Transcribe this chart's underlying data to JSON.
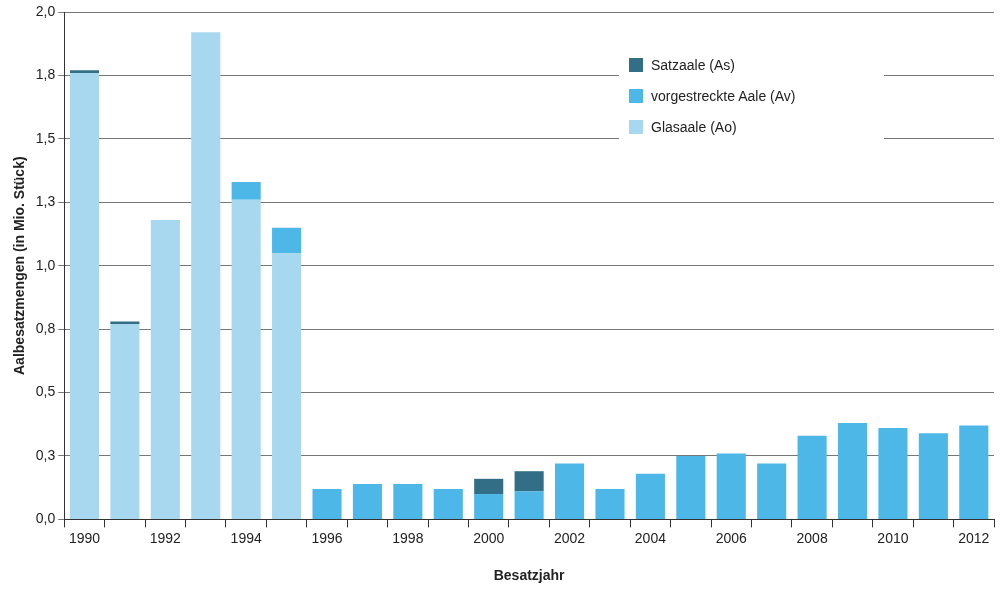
{
  "chart_data": {
    "type": "bar",
    "stacked": true,
    "xlabel": "Besatzjahr",
    "ylabel": "Aalbesatzmengen (in Mio. Stück)",
    "categories": [
      "1990",
      null,
      "1992",
      null,
      "1994",
      null,
      "1996",
      null,
      "1998",
      null,
      "2000",
      null,
      "2002",
      null,
      "2004",
      null,
      "2006",
      null,
      "2008",
      null,
      "2010",
      null,
      "2012"
    ],
    "series": [
      {
        "name": "Glasaale (Ao)",
        "color": "#a8d8f0",
        "values": [
          1.76,
          0.77,
          1.18,
          1.92,
          1.26,
          1.05,
          0,
          0,
          0,
          0,
          0,
          0,
          0,
          0,
          0,
          0,
          0,
          0,
          0,
          0,
          0,
          0,
          0
        ]
      },
      {
        "name": "vorgestreckte Aale (Av)",
        "color": "#4db8e8",
        "values": [
          0,
          0,
          0,
          0,
          0.07,
          0.1,
          0.12,
          0.14,
          0.14,
          0.12,
          0.1,
          0.11,
          0.22,
          0.12,
          0.18,
          0.25,
          0.26,
          0.22,
          0.33,
          0.38,
          0.36,
          0.34,
          0.37
        ]
      },
      {
        "name": "Satzaale (As)",
        "color": "#336e87",
        "values": [
          0.01,
          0.01,
          0,
          0,
          0,
          0,
          0,
          0,
          0,
          0,
          0.06,
          0.08,
          0,
          0,
          0,
          0,
          0,
          0,
          0,
          0,
          0,
          0,
          0
        ]
      }
    ],
    "ylim": [
      0,
      2
    ],
    "yticks": [
      {
        "value": 0,
        "label": "0,0"
      },
      {
        "value": 0.25,
        "label": "0,3"
      },
      {
        "value": 0.5,
        "label": "0,5"
      },
      {
        "value": 0.75,
        "label": "0,8"
      },
      {
        "value": 1,
        "label": "1,0"
      },
      {
        "value": 1.25,
        "label": "1,3"
      },
      {
        "value": 1.5,
        "label": "1,5"
      },
      {
        "value": 1.75,
        "label": "1,8"
      },
      {
        "value": 2,
        "label": "2,0"
      }
    ],
    "grid": "y",
    "legend": "top right"
  }
}
